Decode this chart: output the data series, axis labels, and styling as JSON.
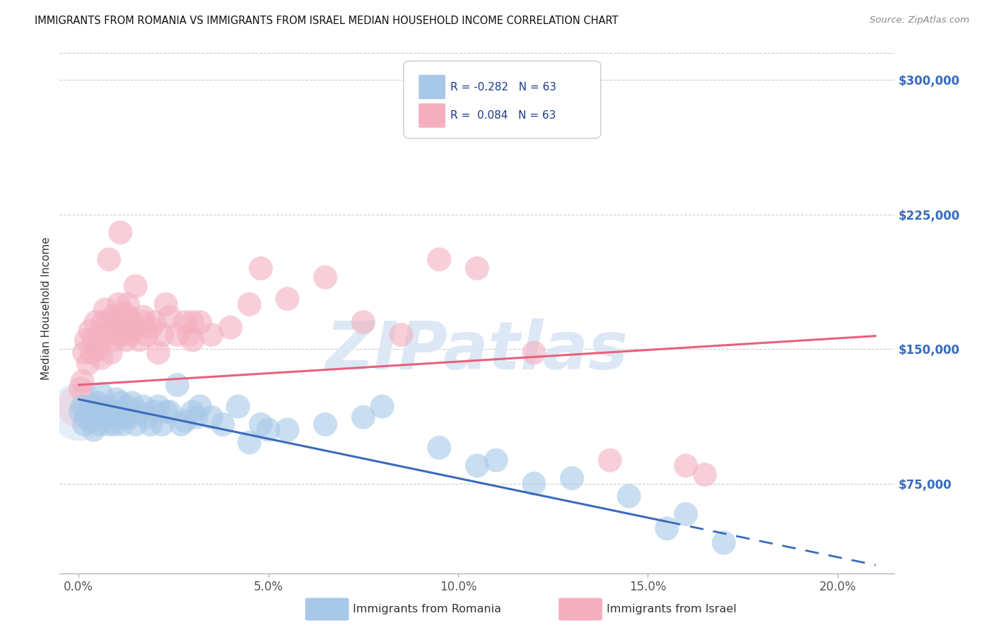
{
  "title": "IMMIGRANTS FROM ROMANIA VS IMMIGRANTS FROM ISRAEL MEDIAN HOUSEHOLD INCOME CORRELATION CHART",
  "source": "Source: ZipAtlas.com",
  "xlabel_ticks": [
    "0.0%",
    "5.0%",
    "10.0%",
    "15.0%",
    "20.0%"
  ],
  "xlabel_tick_vals": [
    0.0,
    5.0,
    10.0,
    15.0,
    20.0
  ],
  "ylabel": "Median Household Income",
  "ytick_vals": [
    75000,
    150000,
    225000,
    300000
  ],
  "ytick_labels": [
    "$75,000",
    "$150,000",
    "$225,000",
    "$300,000"
  ],
  "ylim": [
    25000,
    320000
  ],
  "xlim": [
    -0.5,
    21.5
  ],
  "romania_R": "-0.282",
  "romania_N": "63",
  "israel_R": "0.084",
  "israel_N": "63",
  "romania_color": "#a8c8e8",
  "israel_color": "#f4b0c0",
  "romania_line_color": "#3a6bba",
  "israel_line_color": "#e8607a",
  "watermark": "ZIPatlas",
  "watermark_color": "#dce8f5",
  "background_color": "#ffffff",
  "grid_color": "#cccccc",
  "romania_x": [
    0.05,
    0.1,
    0.15,
    0.2,
    0.25,
    0.3,
    0.35,
    0.4,
    0.45,
    0.5,
    0.55,
    0.6,
    0.65,
    0.7,
    0.75,
    0.8,
    0.85,
    0.9,
    0.95,
    1.0,
    1.05,
    1.1,
    1.15,
    1.2,
    1.25,
    1.3,
    1.35,
    1.4,
    1.5,
    1.6,
    1.7,
    1.8,
    1.9,
    2.0,
    2.1,
    2.2,
    2.4,
    2.6,
    2.8,
    3.0,
    3.2,
    3.5,
    3.8,
    4.2,
    4.8,
    5.5,
    6.5,
    7.5,
    9.5,
    11.0,
    13.0,
    14.5,
    16.0,
    2.3,
    2.7,
    3.1,
    4.5,
    5.0,
    8.0,
    10.5,
    12.0,
    15.5,
    17.0
  ],
  "romania_y": [
    115000,
    118000,
    108000,
    112000,
    115000,
    110000,
    118000,
    105000,
    115000,
    120000,
    108000,
    125000,
    112000,
    115000,
    118000,
    108000,
    115000,
    112000,
    108000,
    122000,
    115000,
    120000,
    108000,
    112000,
    115000,
    118000,
    112000,
    120000,
    108000,
    115000,
    118000,
    112000,
    108000,
    115000,
    118000,
    108000,
    115000,
    130000,
    110000,
    115000,
    118000,
    112000,
    108000,
    118000,
    108000,
    105000,
    108000,
    112000,
    95000,
    88000,
    78000,
    68000,
    58000,
    115000,
    108000,
    112000,
    98000,
    105000,
    118000,
    85000,
    75000,
    50000,
    42000
  ],
  "israel_x": [
    0.05,
    0.1,
    0.15,
    0.2,
    0.25,
    0.3,
    0.35,
    0.4,
    0.45,
    0.5,
    0.55,
    0.6,
    0.65,
    0.7,
    0.75,
    0.8,
    0.85,
    0.9,
    0.95,
    1.0,
    1.05,
    1.1,
    1.15,
    1.2,
    1.25,
    1.3,
    1.35,
    1.4,
    1.5,
    1.6,
    1.7,
    1.8,
    1.9,
    2.0,
    2.1,
    2.2,
    2.4,
    2.6,
    2.8,
    3.0,
    3.2,
    3.5,
    4.0,
    4.5,
    5.5,
    6.5,
    7.5,
    8.5,
    10.5,
    12.0,
    14.0,
    16.0,
    0.8,
    1.1,
    1.5,
    2.3,
    3.0,
    4.8,
    1.3,
    1.7,
    9.5,
    16.5,
    2.9
  ],
  "israel_y": [
    128000,
    132000,
    148000,
    155000,
    142000,
    160000,
    148000,
    155000,
    165000,
    150000,
    158000,
    145000,
    165000,
    172000,
    158000,
    165000,
    148000,
    168000,
    155000,
    162000,
    175000,
    158000,
    162000,
    170000,
    155000,
    168000,
    158000,
    165000,
    162000,
    155000,
    168000,
    158000,
    162000,
    165000,
    148000,
    158000,
    168000,
    158000,
    165000,
    155000,
    165000,
    158000,
    162000,
    175000,
    178000,
    190000,
    165000,
    158000,
    195000,
    148000,
    88000,
    85000,
    200000,
    215000,
    185000,
    175000,
    165000,
    195000,
    175000,
    165000,
    200000,
    80000,
    158000
  ]
}
